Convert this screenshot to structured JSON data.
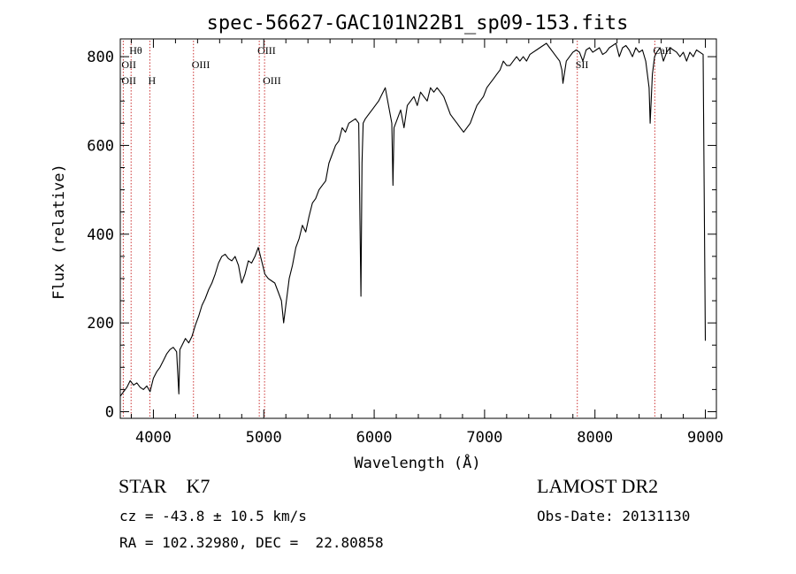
{
  "chart_data": {
    "type": "line",
    "title": "spec-56627-GAC101N22B1_sp09-153.fits",
    "xlabel": "Wavelength (Å)",
    "ylabel": "Flux (relative)",
    "xlim": [
      3700,
      9100
    ],
    "ylim": [
      -15,
      840
    ],
    "xticks": [
      4000,
      5000,
      6000,
      7000,
      8000,
      9000
    ],
    "yticks": [
      0,
      200,
      400,
      600,
      800
    ],
    "minor_xtick_step": 200,
    "minor_ytick_step": 50,
    "line_color": "#000000",
    "marker_color": "#cc3333",
    "series": [
      {
        "x": [
          3700,
          3730,
          3760,
          3790,
          3820,
          3850,
          3880,
          3910,
          3940,
          3970,
          4000,
          4030,
          4060,
          4090,
          4120,
          4150,
          4180,
          4210,
          4230,
          4240,
          4260,
          4290,
          4320,
          4350,
          4380,
          4410,
          4440,
          4470,
          4500,
          4530,
          4560,
          4590,
          4620,
          4650,
          4680,
          4710,
          4740,
          4770,
          4800,
          4830,
          4860,
          4890,
          4920,
          4950,
          4980,
          5010,
          5040,
          5070,
          5100,
          5130,
          5160,
          5180,
          5200,
          5230,
          5260,
          5290,
          5320,
          5350,
          5380,
          5410,
          5440,
          5470,
          5500,
          5530,
          5560,
          5590,
          5620,
          5650,
          5680,
          5710,
          5740,
          5770,
          5800,
          5830,
          5860,
          5880,
          5890,
          5900,
          5920,
          5950,
          5980,
          6010,
          6040,
          6070,
          6100,
          6130,
          6160,
          6170,
          6180,
          6210,
          6240,
          6270,
          6300,
          6330,
          6360,
          6390,
          6420,
          6450,
          6480,
          6510,
          6540,
          6570,
          6600,
          6630,
          6660,
          6690,
          6720,
          6750,
          6780,
          6810,
          6840,
          6870,
          6900,
          6930,
          6960,
          6990,
          7020,
          7050,
          7080,
          7110,
          7140,
          7170,
          7200,
          7230,
          7260,
          7290,
          7320,
          7350,
          7380,
          7410,
          7440,
          7470,
          7500,
          7530,
          7560,
          7590,
          7620,
          7650,
          7680,
          7700,
          7710,
          7740,
          7770,
          7800,
          7830,
          7860,
          7890,
          7920,
          7950,
          7980,
          8010,
          8040,
          8070,
          8100,
          8130,
          8160,
          8190,
          8220,
          8250,
          8280,
          8310,
          8340,
          8370,
          8400,
          8430,
          8460,
          8490,
          8500,
          8520,
          8540,
          8560,
          8590,
          8620,
          8650,
          8680,
          8710,
          8740,
          8770,
          8800,
          8830,
          8860,
          8890,
          8920,
          8950,
          8980,
          9000
        ],
        "y": [
          35,
          45,
          55,
          70,
          60,
          65,
          55,
          50,
          58,
          45,
          75,
          90,
          100,
          115,
          130,
          140,
          145,
          135,
          40,
          140,
          150,
          165,
          155,
          170,
          195,
          215,
          240,
          255,
          275,
          290,
          310,
          335,
          350,
          355,
          345,
          340,
          350,
          330,
          290,
          310,
          340,
          335,
          350,
          370,
          340,
          310,
          300,
          295,
          290,
          270,
          250,
          200,
          240,
          300,
          330,
          370,
          390,
          420,
          405,
          440,
          470,
          480,
          500,
          510,
          520,
          560,
          580,
          600,
          610,
          640,
          630,
          650,
          655,
          660,
          650,
          260,
          560,
          650,
          660,
          670,
          680,
          690,
          700,
          715,
          730,
          690,
          650,
          510,
          640,
          660,
          680,
          640,
          690,
          700,
          710,
          690,
          720,
          710,
          700,
          730,
          720,
          730,
          720,
          710,
          690,
          670,
          660,
          650,
          640,
          630,
          640,
          650,
          670,
          690,
          700,
          710,
          730,
          740,
          750,
          760,
          770,
          790,
          780,
          780,
          790,
          800,
          790,
          800,
          790,
          805,
          810,
          815,
          820,
          825,
          830,
          820,
          810,
          800,
          790,
          770,
          740,
          790,
          800,
          810,
          815,
          810,
          790,
          815,
          820,
          810,
          815,
          820,
          805,
          810,
          820,
          825,
          830,
          800,
          820,
          825,
          815,
          800,
          820,
          810,
          815,
          790,
          730,
          650,
          760,
          800,
          810,
          820,
          790,
          810,
          820,
          815,
          810,
          800,
          810,
          790,
          810,
          800,
          815,
          810,
          805,
          160
        ]
      }
    ],
    "line_markers": [
      {
        "label": "Hθ",
        "x": 3798,
        "row": "top"
      },
      {
        "label": "OII",
        "x": 3727,
        "row": "mid"
      },
      {
        "label": "OII",
        "x": 3727,
        "row": "low"
      },
      {
        "label": "H",
        "x": 3968,
        "row": "low"
      },
      {
        "label": "OIII",
        "x": 4363,
        "row": "mid"
      },
      {
        "label": "OIII",
        "x": 4959,
        "row": "top"
      },
      {
        "label": "OIII",
        "x": 5007,
        "row": "low"
      },
      {
        "label": "SII",
        "x": 7840,
        "row": "mid"
      },
      {
        "label": "CaII",
        "x": 8542,
        "row": "top"
      }
    ]
  },
  "info": {
    "object_class": "STAR",
    "subclass": "K7",
    "survey": "LAMOST DR2",
    "cz_text": "cz = -43.8 ± 10.5 km/s",
    "obs_date_text": "Obs-Date: 20131130",
    "radec_text": "RA = 102.32980, DEC =  22.80858"
  }
}
